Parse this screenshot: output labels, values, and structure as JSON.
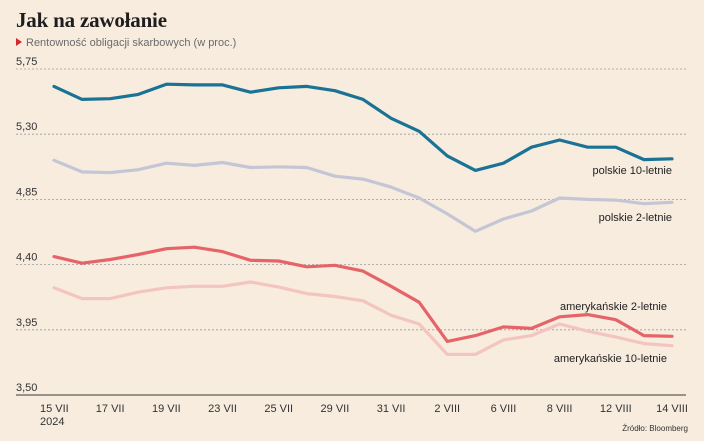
{
  "title": "Jak na zawołanie",
  "subtitle": "Rentowność obligacji skarbowych (w proc.)",
  "source": "Źródło: Bloomberg",
  "chart_data": {
    "type": "line",
    "title": "Jak na zawołanie",
    "subtitle": "Rentowność obligacji skarbowych (w proc.)",
    "ylim": [
      3.5,
      5.75
    ],
    "yticks": [
      "5,75",
      "5,30",
      "4,85",
      "4,40",
      "3,95",
      "3,50"
    ],
    "ytick_values": [
      5.75,
      5.3,
      4.85,
      4.4,
      3.95,
      3.5
    ],
    "grid": true,
    "x": [
      "15 VII",
      "16 VII",
      "17 VII",
      "18 VII",
      "19 VII",
      "22 VII",
      "23 VII",
      "24 VII",
      "25 VII",
      "26 VII",
      "29 VII",
      "30 VII",
      "31 VII",
      "1 VIII",
      "2 VIII",
      "5 VIII",
      "6 VIII",
      "7 VIII",
      "8 VIII",
      "9 VIII",
      "12 VIII",
      "13 VIII",
      "14 VIII"
    ],
    "xtick_labels": [
      {
        "index": 0,
        "label": "15 VII",
        "sub": "2024"
      },
      {
        "index": 2,
        "label": "17 VII"
      },
      {
        "index": 4,
        "label": "19 VII"
      },
      {
        "index": 6,
        "label": "23 VII"
      },
      {
        "index": 8,
        "label": "25 VII"
      },
      {
        "index": 10,
        "label": "29 VII"
      },
      {
        "index": 12,
        "label": "31 VII"
      },
      {
        "index": 14,
        "label": "2 VIII"
      },
      {
        "index": 16,
        "label": "6 VIII"
      },
      {
        "index": 18,
        "label": "8 VIII"
      },
      {
        "index": 20,
        "label": "12 VIII"
      },
      {
        "index": 22,
        "label": "14 VIII"
      }
    ],
    "series": [
      {
        "name": "polskie 10-letnie",
        "color": "#1a7395",
        "values": [
          5.63,
          5.54,
          5.545,
          5.575,
          5.645,
          5.64,
          5.64,
          5.59,
          5.62,
          5.63,
          5.6,
          5.54,
          5.41,
          5.32,
          5.15,
          5.05,
          5.1,
          5.21,
          5.26,
          5.21,
          5.21,
          5.125,
          5.13
        ]
      },
      {
        "name": "polskie 2-letnie",
        "color": "#c4c6d6",
        "values": [
          5.12,
          5.04,
          5.035,
          5.055,
          5.1,
          5.085,
          5.105,
          5.07,
          5.075,
          5.07,
          5.01,
          4.99,
          4.935,
          4.86,
          4.75,
          4.63,
          4.715,
          4.77,
          4.86,
          4.85,
          4.845,
          4.82,
          4.83
        ]
      },
      {
        "name": "amerykańskie 2-letnie",
        "color": "#e56469",
        "values": [
          4.455,
          4.41,
          4.435,
          4.47,
          4.51,
          4.52,
          4.49,
          4.43,
          4.425,
          4.385,
          4.395,
          4.355,
          4.25,
          4.14,
          3.87,
          3.91,
          3.97,
          3.96,
          4.04,
          4.055,
          4.02,
          3.91,
          3.905
        ]
      },
      {
        "name": "amerykańskie 10-letnie",
        "color": "#f4c4c0",
        "values": [
          4.24,
          4.165,
          4.165,
          4.21,
          4.24,
          4.25,
          4.25,
          4.28,
          4.245,
          4.2,
          4.18,
          4.15,
          4.05,
          3.99,
          3.78,
          3.78,
          3.88,
          3.91,
          3.99,
          3.94,
          3.9,
          3.855,
          3.84
        ]
      }
    ],
    "labels": [
      {
        "series": 0,
        "text": "polskie 10-letnie"
      },
      {
        "series": 1,
        "text": "polskie 2-letnie"
      },
      {
        "series": 2,
        "text": "amerykańskie 2-letnie"
      },
      {
        "series": 3,
        "text": "amerykańskie 10-letnie"
      }
    ]
  }
}
